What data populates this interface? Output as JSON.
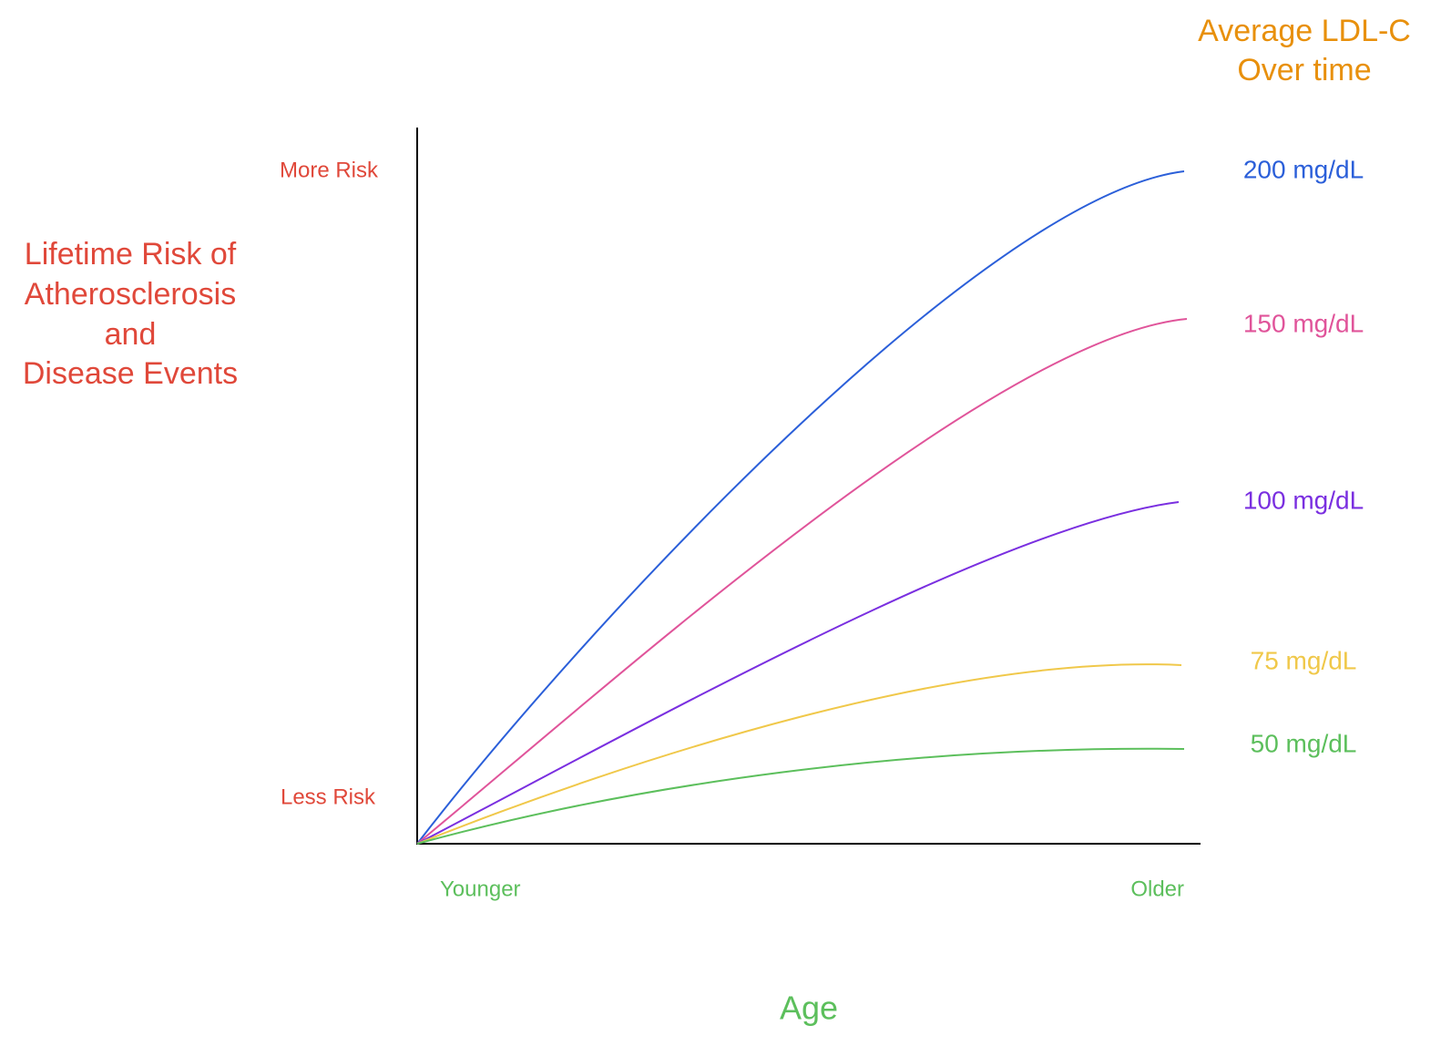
{
  "legend_title": [
    "Average LDL-C",
    "Over time"
  ],
  "y_axis": {
    "label": [
      "Lifetime Risk of",
      "Atherosclerosis",
      "and",
      "Disease Events"
    ],
    "top": "More Risk",
    "bottom": "Less Risk"
  },
  "x_axis": {
    "label": "Age",
    "left": "Younger",
    "right": "Older"
  },
  "curves": [
    {
      "label": "200 mg/dL"
    },
    {
      "label": "150 mg/dL"
    },
    {
      "label": "100 mg/dL"
    },
    {
      "label": "75 mg/dL"
    },
    {
      "label": "50 mg/dL"
    }
  ]
}
